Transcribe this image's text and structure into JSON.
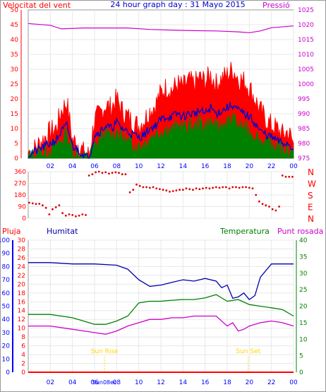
{
  "colors": {
    "wind": "#ff0000",
    "gust": "#ff0000",
    "avg": "#0000cc",
    "wind_green": "#008000",
    "pressure": "#cc00cc",
    "direction": "#dd0000",
    "humidity": "#0000aa",
    "temperature": "#008000",
    "dewpoint": "#cc00cc",
    "rain": "#ff0000",
    "sun": "#ffd700",
    "axis_blue": "#0000ff",
    "axis_red": "#ff0000",
    "axis_magenta": "#cc00cc",
    "axis_green": "#008000",
    "grid": "#e8e8e8"
  },
  "header": {
    "left": "Velocitat del vent",
    "center": "24 hour graph day : 31 Mayo 2015",
    "right": "Pressió"
  },
  "x_ticks": [
    "02",
    "04",
    "06",
    "08",
    "10",
    "12",
    "14",
    "16",
    "18",
    "20",
    "22",
    "00"
  ],
  "wind_chart": {
    "ylim": [
      0,
      50
    ],
    "y_ticks": [
      0,
      5,
      10,
      15,
      20,
      25,
      30,
      35,
      40,
      45,
      50
    ],
    "pressure_ylim": [
      975,
      1025
    ],
    "pressure_ticks": [
      975,
      980,
      985,
      990,
      995,
      1000,
      1005,
      1010,
      1015,
      1020,
      1025
    ],
    "gust_series": [
      [
        0,
        2
      ],
      [
        0.5,
        3
      ],
      [
        1,
        5
      ],
      [
        1.5,
        7
      ],
      [
        2,
        9
      ],
      [
        2.5,
        10
      ],
      [
        3,
        16
      ],
      [
        3.5,
        19
      ],
      [
        4,
        6
      ],
      [
        4.5,
        5
      ],
      [
        5,
        2
      ],
      [
        5.5,
        1
      ],
      [
        6,
        13
      ],
      [
        6.5,
        15
      ],
      [
        7,
        18
      ],
      [
        7.5,
        17
      ],
      [
        8,
        20
      ],
      [
        8.5,
        16
      ],
      [
        9,
        14
      ],
      [
        9.5,
        12
      ],
      [
        10,
        11
      ],
      [
        10.5,
        13
      ],
      [
        11,
        16
      ],
      [
        11.5,
        18
      ],
      [
        12,
        22
      ],
      [
        12.5,
        24
      ],
      [
        13,
        23
      ],
      [
        13.5,
        25
      ],
      [
        14,
        24
      ],
      [
        14.5,
        26
      ],
      [
        15,
        25
      ],
      [
        15.5,
        27
      ],
      [
        16,
        26
      ],
      [
        16.5,
        28
      ],
      [
        17,
        25
      ],
      [
        17.5,
        27
      ],
      [
        18,
        28
      ],
      [
        18.5,
        30
      ],
      [
        19,
        27
      ],
      [
        19.5,
        26
      ],
      [
        20,
        24
      ],
      [
        20.5,
        20
      ],
      [
        21,
        16
      ],
      [
        21.5,
        13
      ],
      [
        22,
        11
      ],
      [
        22.5,
        10
      ],
      [
        23,
        8
      ],
      [
        23.5,
        9
      ],
      [
        24,
        5
      ]
    ],
    "avg_series": [
      [
        0,
        1
      ],
      [
        0.5,
        2
      ],
      [
        1,
        3
      ],
      [
        1.5,
        4
      ],
      [
        2,
        5
      ],
      [
        2.5,
        6
      ],
      [
        3,
        9
      ],
      [
        3.5,
        11
      ],
      [
        4,
        4
      ],
      [
        4.5,
        3
      ],
      [
        5,
        1
      ],
      [
        5.5,
        0
      ],
      [
        6,
        8
      ],
      [
        6.5,
        9
      ],
      [
        7,
        11
      ],
      [
        7.5,
        10
      ],
      [
        8,
        12
      ],
      [
        8.5,
        10
      ],
      [
        9,
        9
      ],
      [
        9.5,
        8
      ],
      [
        10,
        7
      ],
      [
        10.5,
        8
      ],
      [
        11,
        10
      ],
      [
        11.5,
        11
      ],
      [
        12,
        13
      ],
      [
        12.5,
        14
      ],
      [
        13,
        14
      ],
      [
        13.5,
        15
      ],
      [
        14,
        14
      ],
      [
        14.5,
        15
      ],
      [
        15,
        15
      ],
      [
        15.5,
        16
      ],
      [
        16,
        15
      ],
      [
        16.5,
        17
      ],
      [
        17,
        15
      ],
      [
        17.5,
        16
      ],
      [
        18,
        17
      ],
      [
        18.5,
        18
      ],
      [
        19,
        16
      ],
      [
        19.5,
        15
      ],
      [
        20,
        14
      ],
      [
        20.5,
        12
      ],
      [
        21,
        9
      ],
      [
        21.5,
        8
      ],
      [
        22,
        7
      ],
      [
        22.5,
        6
      ],
      [
        23,
        5
      ],
      [
        23.5,
        5
      ],
      [
        24,
        3
      ]
    ],
    "low_series": [
      [
        0,
        0
      ],
      [
        0.5,
        1
      ],
      [
        1,
        2
      ],
      [
        1.5,
        2
      ],
      [
        2,
        3
      ],
      [
        2.5,
        4
      ],
      [
        3,
        6
      ],
      [
        3.5,
        8
      ],
      [
        4,
        2
      ],
      [
        4.5,
        1
      ],
      [
        5,
        0
      ],
      [
        5.5,
        0
      ],
      [
        6,
        4
      ],
      [
        6.5,
        6
      ],
      [
        7,
        8
      ],
      [
        7.5,
        7
      ],
      [
        8,
        9
      ],
      [
        8.5,
        7
      ],
      [
        9,
        5
      ],
      [
        9.5,
        5
      ],
      [
        10,
        4
      ],
      [
        10.5,
        5
      ],
      [
        11,
        7
      ],
      [
        11.5,
        8
      ],
      [
        12,
        9
      ],
      [
        12.5,
        10
      ],
      [
        13,
        9
      ],
      [
        13.5,
        11
      ],
      [
        14,
        10
      ],
      [
        14.5,
        11
      ],
      [
        15,
        10
      ],
      [
        15.5,
        12
      ],
      [
        16,
        11
      ],
      [
        16.5,
        12
      ],
      [
        17,
        10
      ],
      [
        17.5,
        11
      ],
      [
        18,
        12
      ],
      [
        18.5,
        13
      ],
      [
        19,
        11
      ],
      [
        19.5,
        10
      ],
      [
        20,
        9
      ],
      [
        20.5,
        8
      ],
      [
        21,
        6
      ],
      [
        21.5,
        5
      ],
      [
        22,
        4
      ],
      [
        22.5,
        4
      ],
      [
        23,
        3
      ],
      [
        23.5,
        3
      ],
      [
        24,
        2
      ]
    ],
    "pressure_series": [
      [
        0,
        1020.4
      ],
      [
        2,
        1019.8
      ],
      [
        3,
        1018.6
      ],
      [
        5,
        1018.9
      ],
      [
        7,
        1018.9
      ],
      [
        9,
        1018.9
      ],
      [
        11,
        1018.4
      ],
      [
        13,
        1018.2
      ],
      [
        15,
        1018.0
      ],
      [
        17,
        1017.9
      ],
      [
        19,
        1017.6
      ],
      [
        20,
        1017.3
      ],
      [
        21,
        1017.9
      ],
      [
        22,
        1019.0
      ],
      [
        24,
        1019.6
      ]
    ]
  },
  "dir_chart": {
    "ylim": [
      0,
      360
    ],
    "y_ticks": [
      0,
      90,
      180,
      270,
      360
    ],
    "compass": [
      "N",
      "W",
      "S",
      "E",
      "N"
    ],
    "series": [
      [
        0.1,
        120
      ],
      [
        0.4,
        115
      ],
      [
        0.7,
        110
      ],
      [
        1.0,
        112
      ],
      [
        1.3,
        100
      ],
      [
        1.6,
        80
      ],
      [
        1.9,
        30
      ],
      [
        2.2,
        70
      ],
      [
        2.5,
        85
      ],
      [
        2.8,
        100
      ],
      [
        3.1,
        40
      ],
      [
        3.4,
        20
      ],
      [
        3.7,
        30
      ],
      [
        4.0,
        25
      ],
      [
        4.3,
        15
      ],
      [
        4.6,
        20
      ],
      [
        4.9,
        30
      ],
      [
        5.2,
        25
      ],
      [
        5.5,
        330
      ],
      [
        5.8,
        340
      ],
      [
        6.1,
        355
      ],
      [
        6.4,
        360
      ],
      [
        6.7,
        350
      ],
      [
        7.0,
        355
      ],
      [
        7.3,
        345
      ],
      [
        7.6,
        350
      ],
      [
        7.9,
        355
      ],
      [
        8.2,
        350
      ],
      [
        8.5,
        340
      ],
      [
        8.8,
        340
      ],
      [
        9.2,
        200
      ],
      [
        9.5,
        220
      ],
      [
        9.8,
        260
      ],
      [
        10.1,
        250
      ],
      [
        10.4,
        240
      ],
      [
        10.7,
        240
      ],
      [
        11.0,
        235
      ],
      [
        11.3,
        240
      ],
      [
        11.6,
        230
      ],
      [
        11.9,
        225
      ],
      [
        12.2,
        220
      ],
      [
        12.5,
        215
      ],
      [
        12.8,
        205
      ],
      [
        13.1,
        210
      ],
      [
        13.4,
        215
      ],
      [
        13.7,
        220
      ],
      [
        14.0,
        220
      ],
      [
        14.3,
        230
      ],
      [
        14.6,
        225
      ],
      [
        14.9,
        220
      ],
      [
        15.2,
        230
      ],
      [
        15.5,
        225
      ],
      [
        15.8,
        230
      ],
      [
        16.1,
        235
      ],
      [
        16.4,
        230
      ],
      [
        16.7,
        235
      ],
      [
        17.0,
        240
      ],
      [
        17.3,
        235
      ],
      [
        17.6,
        240
      ],
      [
        17.9,
        240
      ],
      [
        18.2,
        230
      ],
      [
        18.5,
        240
      ],
      [
        18.8,
        240
      ],
      [
        19.1,
        235
      ],
      [
        19.4,
        240
      ],
      [
        19.7,
        240
      ],
      [
        20.0,
        235
      ],
      [
        20.3,
        230
      ],
      [
        20.6,
        180
      ],
      [
        20.9,
        130
      ],
      [
        21.2,
        110
      ],
      [
        21.5,
        100
      ],
      [
        21.8,
        90
      ],
      [
        22.1,
        70
      ],
      [
        22.4,
        60
      ],
      [
        22.7,
        90
      ],
      [
        23.0,
        330
      ],
      [
        23.3,
        320
      ],
      [
        23.6,
        320
      ],
      [
        23.9,
        320
      ]
    ]
  },
  "bottom_header": {
    "pluja": "Pluja",
    "humitat": "Humitat",
    "temperatura": "Temperatura",
    "punt_rosada": "Punt rosada"
  },
  "bottom_chart": {
    "hum_ticks": [
      0,
      10,
      20,
      30,
      40,
      50,
      60,
      70,
      80,
      90,
      100
    ],
    "rain_ticks": [
      0,
      2,
      4,
      6,
      8,
      10,
      12,
      14,
      16,
      18,
      20,
      22,
      24,
      26,
      28,
      30
    ],
    "temp_ticks": [
      0,
      5,
      10,
      15,
      20,
      25,
      30,
      35,
      40
    ],
    "hum_ylim": [
      0,
      100
    ],
    "temp_ylim": [
      0,
      40
    ],
    "humidity_series": [
      [
        0,
        83
      ],
      [
        2,
        83
      ],
      [
        4,
        82
      ],
      [
        6,
        82
      ],
      [
        8,
        81
      ],
      [
        9,
        78
      ],
      [
        10,
        70
      ],
      [
        11,
        65
      ],
      [
        12,
        66
      ],
      [
        13,
        68
      ],
      [
        14,
        70
      ],
      [
        15,
        69
      ],
      [
        16,
        71
      ],
      [
        17,
        69
      ],
      [
        17.5,
        64
      ],
      [
        18,
        66
      ],
      [
        18.5,
        56
      ],
      [
        19,
        57
      ],
      [
        19.5,
        60
      ],
      [
        20,
        55
      ],
      [
        20.5,
        58
      ],
      [
        21,
        72
      ],
      [
        22,
        82
      ],
      [
        23,
        82
      ],
      [
        24,
        82
      ]
    ],
    "temperature_series": [
      [
        0,
        17.5
      ],
      [
        2,
        17.5
      ],
      [
        4,
        16.5
      ],
      [
        5,
        15.5
      ],
      [
        6,
        14.5
      ],
      [
        7,
        14.5
      ],
      [
        8,
        15.5
      ],
      [
        9,
        17
      ],
      [
        10,
        21
      ],
      [
        11,
        21.5
      ],
      [
        12,
        21.5
      ],
      [
        13,
        21.8
      ],
      [
        14,
        22
      ],
      [
        15,
        22
      ],
      [
        16,
        22.5
      ],
      [
        17,
        23.5
      ],
      [
        18,
        21.5
      ],
      [
        19,
        22
      ],
      [
        20,
        20.5
      ],
      [
        21,
        20
      ],
      [
        22,
        19.5
      ],
      [
        23,
        19
      ],
      [
        24,
        17
      ]
    ],
    "dewpoint_series": [
      [
        0,
        14
      ],
      [
        2,
        14
      ],
      [
        4,
        13
      ],
      [
        6,
        12
      ],
      [
        7,
        11.5
      ],
      [
        8,
        12.5
      ],
      [
        9,
        14
      ],
      [
        10,
        15
      ],
      [
        11,
        16
      ],
      [
        12,
        16
      ],
      [
        13,
        16.5
      ],
      [
        14,
        16.5
      ],
      [
        15,
        17
      ],
      [
        16,
        17
      ],
      [
        17,
        17
      ],
      [
        18,
        14
      ],
      [
        18.5,
        15
      ],
      [
        19,
        12.5
      ],
      [
        19.5,
        13
      ],
      [
        20,
        14
      ],
      [
        21,
        15
      ],
      [
        22,
        15.5
      ],
      [
        23,
        15
      ],
      [
        24,
        14
      ]
    ],
    "rain_series": [
      [
        0,
        0
      ],
      [
        24,
        0
      ]
    ],
    "sunrise_hour": 6.9,
    "sunset_hour": 19.9,
    "sunrise_label": "Sun Rise",
    "sunset_label": "Sun Set",
    "sunrise_axis_label": "Sun08ec"
  }
}
